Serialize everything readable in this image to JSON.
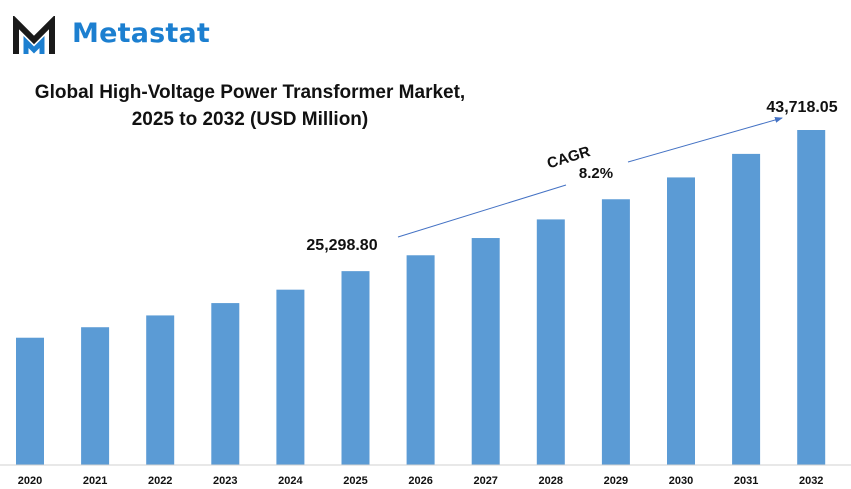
{
  "brand": {
    "name": "Metastat",
    "primary_color": "#1a1a1a",
    "accent_color": "#1c7fd0"
  },
  "chart_data": {
    "type": "bar",
    "title_line1": "Global High-Voltage Power Transformer Market,",
    "title_line2": "2025 to 2032 (USD Million)",
    "categories": [
      "2020",
      "2021",
      "2022",
      "2023",
      "2024",
      "2025",
      "2026",
      "2027",
      "2028",
      "2029",
      "2030",
      "2031",
      "2032"
    ],
    "values": [
      16610,
      17980,
      19520,
      21130,
      22880,
      25298.8,
      27370,
      29620,
      32050,
      34680,
      37530,
      40600,
      43718.05
    ],
    "ylim": [
      0,
      44000
    ],
    "grid": false,
    "bar_color": "#5b9bd5",
    "annotations": {
      "start_label": "25,298.80",
      "end_label": "43,718.05",
      "cagr_label": "CAGR",
      "cagr_value": "8.2%"
    }
  }
}
